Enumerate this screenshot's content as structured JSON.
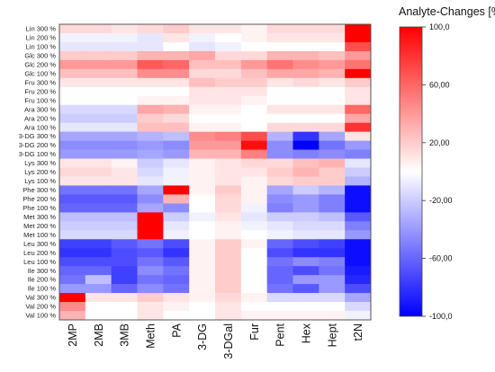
{
  "chart_data": {
    "type": "heatmap",
    "title": "",
    "colorbar_title": "Analyte-Changes [%]",
    "colorbar_ticks": [
      "100,0",
      "60,00",
      "20,00",
      "-20,00",
      "-60,00",
      "-100,0"
    ],
    "colorbar_tick_values": [
      100,
      60,
      20,
      -20,
      -60,
      -100
    ],
    "zlim": [
      -100,
      100
    ],
    "colors": {
      "low": "#0000ff",
      "mid": "#ffffff",
      "high": "#ff0000"
    },
    "x_categories": [
      "2MP",
      "2MB",
      "3MB",
      "Meth",
      "PA",
      "3-DG",
      "3-DGal",
      "Fur",
      "Pent",
      "Hex",
      "Hept",
      "t2N"
    ],
    "y_categories": [
      "Lin 300 %",
      "Lin 200 %",
      "Lin 100 %",
      "Glc 300 %",
      "Glc 200 %",
      "Glc 100 %",
      "Fru 300 %",
      "Fru 200 %",
      "Fru 100 %",
      "Ara 300 %",
      "Ara 200 %",
      "Ara 100 %",
      "3-DG 300 %",
      "3-DG 200 %",
      "3-DG 100 %",
      "Lys 300 %",
      "Lys 200 %",
      "Lys 100 %",
      "Phe 300 %",
      "Phe 200 %",
      "Phe 100 %",
      "Met 300 %",
      "Met 200 %",
      "Met 100 %",
      "Leu 300 %",
      "Leu 200 %",
      "Leu 100 %",
      "Ile 300 %",
      "Ile 200 %",
      "Ile 100 %",
      "Val 300 %",
      "Val 200 %",
      "Val 100 %"
    ],
    "values": [
      [
        15,
        15,
        10,
        15,
        20,
        10,
        10,
        5,
        15,
        15,
        15,
        100
      ],
      [
        -5,
        -5,
        -5,
        -10,
        10,
        -5,
        0,
        5,
        10,
        10,
        10,
        100
      ],
      [
        -10,
        -10,
        -10,
        -10,
        0,
        -10,
        -5,
        0,
        0,
        0,
        0,
        70
      ],
      [
        20,
        20,
        20,
        30,
        30,
        35,
        15,
        15,
        30,
        30,
        25,
        40
      ],
      [
        40,
        40,
        40,
        65,
        60,
        25,
        25,
        40,
        55,
        45,
        40,
        55
      ],
      [
        25,
        25,
        25,
        45,
        45,
        15,
        15,
        25,
        35,
        35,
        30,
        100
      ],
      [
        10,
        10,
        10,
        10,
        10,
        25,
        20,
        20,
        10,
        15,
        10,
        20
      ],
      [
        0,
        0,
        0,
        0,
        0,
        10,
        10,
        10,
        0,
        0,
        0,
        10
      ],
      [
        0,
        0,
        0,
        5,
        5,
        10,
        10,
        5,
        0,
        0,
        0,
        10
      ],
      [
        -15,
        -15,
        -15,
        35,
        30,
        5,
        5,
        0,
        10,
        10,
        10,
        60
      ],
      [
        -20,
        -20,
        -20,
        20,
        15,
        0,
        0,
        0,
        0,
        0,
        0,
        35
      ],
      [
        -10,
        -10,
        -10,
        25,
        25,
        5,
        5,
        0,
        15,
        15,
        15,
        80
      ],
      [
        -35,
        -35,
        -35,
        -30,
        -25,
        45,
        50,
        70,
        -30,
        -80,
        -35,
        10
      ],
      [
        -45,
        -45,
        -45,
        -40,
        -45,
        40,
        40,
        95,
        -45,
        -100,
        -55,
        -40
      ],
      [
        -40,
        -40,
        -40,
        -35,
        -40,
        30,
        30,
        50,
        -45,
        -50,
        -45,
        -50
      ],
      [
        10,
        10,
        5,
        -20,
        -10,
        5,
        10,
        15,
        15,
        25,
        30,
        -10
      ],
      [
        15,
        15,
        10,
        -15,
        -5,
        5,
        10,
        10,
        20,
        30,
        20,
        -20
      ],
      [
        10,
        10,
        10,
        -10,
        -5,
        5,
        10,
        5,
        15,
        20,
        20,
        -30
      ],
      [
        -55,
        -55,
        -55,
        -35,
        100,
        5,
        20,
        5,
        -35,
        -20,
        -30,
        -95
      ],
      [
        -65,
        -65,
        -65,
        -45,
        30,
        0,
        15,
        5,
        -45,
        -40,
        -50,
        -95
      ],
      [
        -60,
        -60,
        -60,
        -35,
        -45,
        0,
        15,
        -5,
        -50,
        -40,
        -50,
        -95
      ],
      [
        -25,
        -25,
        -25,
        100,
        -20,
        -5,
        10,
        -10,
        -20,
        -20,
        -25,
        -65
      ],
      [
        -20,
        -20,
        -20,
        100,
        -10,
        0,
        5,
        -5,
        -10,
        -15,
        -15,
        -50
      ],
      [
        -15,
        -15,
        -15,
        100,
        -5,
        0,
        5,
        0,
        -5,
        -10,
        -10,
        -40
      ],
      [
        -75,
        -75,
        -65,
        -55,
        -70,
        5,
        20,
        5,
        -60,
        -70,
        -75,
        -95
      ],
      [
        -80,
        -80,
        -70,
        -65,
        -80,
        5,
        20,
        0,
        -70,
        -80,
        -80,
        -95
      ],
      [
        -70,
        -70,
        -70,
        -55,
        -65,
        5,
        20,
        0,
        -55,
        -45,
        -50,
        -95
      ],
      [
        -60,
        -60,
        -75,
        -45,
        -55,
        5,
        20,
        0,
        -60,
        -70,
        -55,
        -90
      ],
      [
        -55,
        -25,
        -75,
        -55,
        -60,
        5,
        20,
        0,
        -60,
        -40,
        -40,
        -85
      ],
      [
        -40,
        -40,
        -60,
        -45,
        -55,
        5,
        20,
        0,
        -55,
        -65,
        -40,
        -70
      ],
      [
        100,
        10,
        10,
        20,
        10,
        5,
        15,
        5,
        -15,
        -15,
        -15,
        -35
      ],
      [
        45,
        0,
        0,
        10,
        5,
        0,
        10,
        0,
        0,
        0,
        0,
        -15
      ],
      [
        30,
        0,
        0,
        10,
        0,
        0,
        10,
        5,
        5,
        5,
        5,
        -5
      ]
    ]
  }
}
